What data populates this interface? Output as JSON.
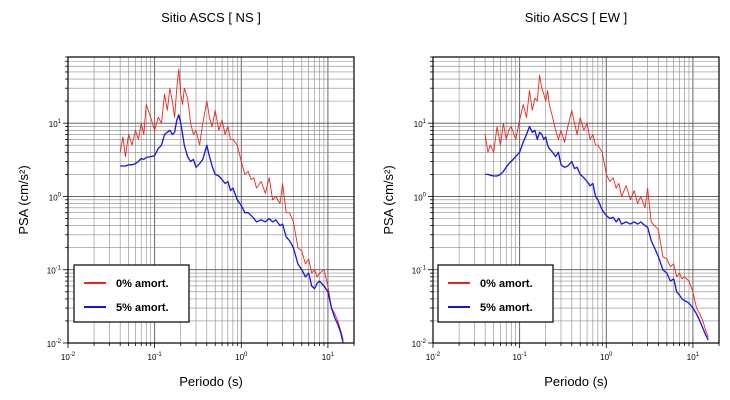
{
  "chart_data": [
    {
      "type": "line",
      "title": "Sitio ASCS [ NS ]",
      "xlabel": "Periodo (s)",
      "ylabel": "PSA (cm/s²)",
      "x_scale": "log",
      "y_scale": "log",
      "xlim": [
        0.01,
        20
      ],
      "ylim": [
        0.01,
        80
      ],
      "xticks": [
        {
          "value": 0.01,
          "base": "10",
          "exp": "-2"
        },
        {
          "value": 0.1,
          "base": "10",
          "exp": "-1"
        },
        {
          "value": 1,
          "base": "10",
          "exp": "0"
        },
        {
          "value": 10,
          "base": "10",
          "exp": "1"
        }
      ],
      "yticks": [
        {
          "value": 0.01,
          "base": "10",
          "exp": "-2"
        },
        {
          "value": 0.1,
          "base": "10",
          "exp": "-1"
        },
        {
          "value": 1,
          "base": "10",
          "exp": "0"
        },
        {
          "value": 10,
          "base": "10",
          "exp": "1"
        }
      ],
      "grid": true,
      "legend_position": "bottom-left",
      "series": [
        {
          "name": "0% amort.",
          "color": "#e8281e",
          "x": [
            0.04,
            0.043,
            0.046,
            0.05,
            0.055,
            0.06,
            0.065,
            0.07,
            0.075,
            0.08,
            0.09,
            0.1,
            0.11,
            0.12,
            0.13,
            0.14,
            0.15,
            0.16,
            0.17,
            0.18,
            0.19,
            0.2,
            0.21,
            0.22,
            0.24,
            0.26,
            0.28,
            0.3,
            0.33,
            0.36,
            0.4,
            0.43,
            0.46,
            0.5,
            0.55,
            0.6,
            0.65,
            0.7,
            0.75,
            0.8,
            0.9,
            1.0,
            1.1,
            1.2,
            1.3,
            1.4,
            1.5,
            1.7,
            1.9,
            2.1,
            2.3,
            2.5,
            2.8,
            3.0,
            3.3,
            3.6,
            4.0,
            4.5,
            5.0,
            5.5,
            6.0,
            6.5,
            7.0,
            7.5,
            8.0,
            9.0,
            10.0,
            11.0,
            12.0,
            13.0,
            14.0,
            15.0
          ],
          "y": [
            4.0,
            6.5,
            3.5,
            7.0,
            5.0,
            8.0,
            6.0,
            10.0,
            7.0,
            18.0,
            12.0,
            8.0,
            12.0,
            10.0,
            25.0,
            15.0,
            30.0,
            20.0,
            12.0,
            30.0,
            55.0,
            25.0,
            18.0,
            30.0,
            22.0,
            10.0,
            7.0,
            8.0,
            5.0,
            10.0,
            20.0,
            12.0,
            9.0,
            15.0,
            8.0,
            11.0,
            7.0,
            9.0,
            6.0,
            6.0,
            5.0,
            3.0,
            2.0,
            2.2,
            1.7,
            1.8,
            1.3,
            1.6,
            1.1,
            1.8,
            0.9,
            1.0,
            0.8,
            1.5,
            0.6,
            0.6,
            0.45,
            0.2,
            0.18,
            0.12,
            0.14,
            0.09,
            0.1,
            0.08,
            0.09,
            0.1,
            0.06,
            0.03,
            0.025,
            0.02,
            0.015,
            0.011
          ]
        },
        {
          "name": "5% amort.",
          "color": "#1414dc",
          "x": [
            0.04,
            0.043,
            0.046,
            0.05,
            0.055,
            0.06,
            0.065,
            0.07,
            0.075,
            0.08,
            0.09,
            0.1,
            0.11,
            0.12,
            0.13,
            0.14,
            0.15,
            0.16,
            0.17,
            0.18,
            0.19,
            0.2,
            0.21,
            0.22,
            0.24,
            0.26,
            0.28,
            0.3,
            0.33,
            0.36,
            0.4,
            0.43,
            0.46,
            0.5,
            0.55,
            0.6,
            0.65,
            0.7,
            0.75,
            0.8,
            0.9,
            1.0,
            1.1,
            1.2,
            1.3,
            1.4,
            1.5,
            1.7,
            1.9,
            2.1,
            2.3,
            2.5,
            2.8,
            3.0,
            3.3,
            3.6,
            4.0,
            4.5,
            5.0,
            5.5,
            6.0,
            6.5,
            7.0,
            7.5,
            8.0,
            9.0,
            10.0,
            11.0,
            12.0,
            13.0,
            14.0,
            15.0
          ],
          "y": [
            2.6,
            2.6,
            2.6,
            2.7,
            2.7,
            2.8,
            3.0,
            3.3,
            3.2,
            3.4,
            3.5,
            3.6,
            4.5,
            5.0,
            7.0,
            7.5,
            8.0,
            7.0,
            7.5,
            11.0,
            13.0,
            10.0,
            7.0,
            5.0,
            3.5,
            3.0,
            3.2,
            2.5,
            2.8,
            3.2,
            5.0,
            3.5,
            2.6,
            2.0,
            1.9,
            1.7,
            1.5,
            1.6,
            1.2,
            1.3,
            0.9,
            0.75,
            0.6,
            0.6,
            0.55,
            0.5,
            0.45,
            0.48,
            0.45,
            0.5,
            0.45,
            0.48,
            0.4,
            0.42,
            0.28,
            0.25,
            0.2,
            0.12,
            0.1,
            0.08,
            0.09,
            0.06,
            0.055,
            0.065,
            0.07,
            0.06,
            0.05,
            0.03,
            0.022,
            0.018,
            0.014,
            0.01
          ]
        }
      ]
    },
    {
      "type": "line",
      "title": "Sitio ASCS [ EW ]",
      "xlabel": "Periodo (s)",
      "ylabel": "PSA (cm/s²)",
      "x_scale": "log",
      "y_scale": "log",
      "xlim": [
        0.01,
        20
      ],
      "ylim": [
        0.01,
        80
      ],
      "xticks": [
        {
          "value": 0.01,
          "base": "10",
          "exp": "-2"
        },
        {
          "value": 0.1,
          "base": "10",
          "exp": "-1"
        },
        {
          "value": 1,
          "base": "10",
          "exp": "0"
        },
        {
          "value": 10,
          "base": "10",
          "exp": "1"
        }
      ],
      "yticks": [
        {
          "value": 0.01,
          "base": "10",
          "exp": "-2"
        },
        {
          "value": 0.1,
          "base": "10",
          "exp": "-1"
        },
        {
          "value": 1,
          "base": "10",
          "exp": "0"
        },
        {
          "value": 10,
          "base": "10",
          "exp": "1"
        }
      ],
      "grid": true,
      "legend_position": "bottom-left",
      "series": [
        {
          "name": "0% amort.",
          "color": "#e8281e",
          "x": [
            0.04,
            0.043,
            0.046,
            0.05,
            0.055,
            0.06,
            0.065,
            0.07,
            0.075,
            0.08,
            0.09,
            0.1,
            0.11,
            0.12,
            0.13,
            0.14,
            0.15,
            0.16,
            0.17,
            0.18,
            0.19,
            0.2,
            0.21,
            0.22,
            0.24,
            0.26,
            0.28,
            0.3,
            0.33,
            0.36,
            0.4,
            0.43,
            0.46,
            0.5,
            0.55,
            0.6,
            0.65,
            0.7,
            0.75,
            0.8,
            0.9,
            1.0,
            1.1,
            1.2,
            1.3,
            1.4,
            1.5,
            1.7,
            1.9,
            2.1,
            2.3,
            2.5,
            2.8,
            3.0,
            3.3,
            3.6,
            4.0,
            4.5,
            5.0,
            5.5,
            6.0,
            6.5,
            7.0,
            7.5,
            8.0,
            9.0,
            10.0,
            11.0,
            12.0,
            13.0,
            14.0,
            15.0
          ],
          "y": [
            7.0,
            4.0,
            5.0,
            4.0,
            9.0,
            5.0,
            10.0,
            6.0,
            8.0,
            9.0,
            6.0,
            11.0,
            18.0,
            12.0,
            28.0,
            15.0,
            22.0,
            20.0,
            45.0,
            30.0,
            25.0,
            20.0,
            28.0,
            18.0,
            12.0,
            8.0,
            6.0,
            8.0,
            5.5,
            9.0,
            15.0,
            10.0,
            7.0,
            12.0,
            8.0,
            10.0,
            6.0,
            7.0,
            5.0,
            5.0,
            4.0,
            2.0,
            1.6,
            1.8,
            1.3,
            1.5,
            1.0,
            1.4,
            0.9,
            1.2,
            0.8,
            1.0,
            0.7,
            1.3,
            0.45,
            0.4,
            0.35,
            0.15,
            0.14,
            0.11,
            0.12,
            0.08,
            0.09,
            0.075,
            0.08,
            0.07,
            0.05,
            0.03,
            0.025,
            0.02,
            0.015,
            0.012
          ]
        },
        {
          "name": "5% amort.",
          "color": "#1414dc",
          "x": [
            0.04,
            0.043,
            0.046,
            0.05,
            0.055,
            0.06,
            0.065,
            0.07,
            0.075,
            0.08,
            0.09,
            0.1,
            0.11,
            0.12,
            0.13,
            0.14,
            0.15,
            0.16,
            0.17,
            0.18,
            0.19,
            0.2,
            0.21,
            0.22,
            0.24,
            0.26,
            0.28,
            0.3,
            0.33,
            0.36,
            0.4,
            0.43,
            0.46,
            0.5,
            0.55,
            0.6,
            0.65,
            0.7,
            0.75,
            0.8,
            0.9,
            1.0,
            1.1,
            1.2,
            1.3,
            1.4,
            1.5,
            1.7,
            1.9,
            2.1,
            2.3,
            2.5,
            2.8,
            3.0,
            3.3,
            3.6,
            4.0,
            4.5,
            5.0,
            5.5,
            6.0,
            6.5,
            7.0,
            7.5,
            8.0,
            9.0,
            10.0,
            11.0,
            12.0,
            13.0,
            14.0,
            15.0
          ],
          "y": [
            2.0,
            2.0,
            1.95,
            1.9,
            1.9,
            2.0,
            2.2,
            2.5,
            2.8,
            3.0,
            3.5,
            4.0,
            5.5,
            7.0,
            9.0,
            7.5,
            8.0,
            6.0,
            7.5,
            7.0,
            6.0,
            6.5,
            5.0,
            4.5,
            4.0,
            3.5,
            4.0,
            2.7,
            2.5,
            2.6,
            3.0,
            2.4,
            2.5,
            2.0,
            1.8,
            1.6,
            1.4,
            1.5,
            1.0,
            0.9,
            0.65,
            0.55,
            0.5,
            0.52,
            0.45,
            0.5,
            0.42,
            0.45,
            0.42,
            0.45,
            0.42,
            0.45,
            0.4,
            0.38,
            0.25,
            0.2,
            0.15,
            0.1,
            0.09,
            0.07,
            0.075,
            0.05,
            0.045,
            0.04,
            0.038,
            0.035,
            0.03,
            0.025,
            0.02,
            0.016,
            0.013,
            0.011
          ]
        }
      ]
    }
  ]
}
